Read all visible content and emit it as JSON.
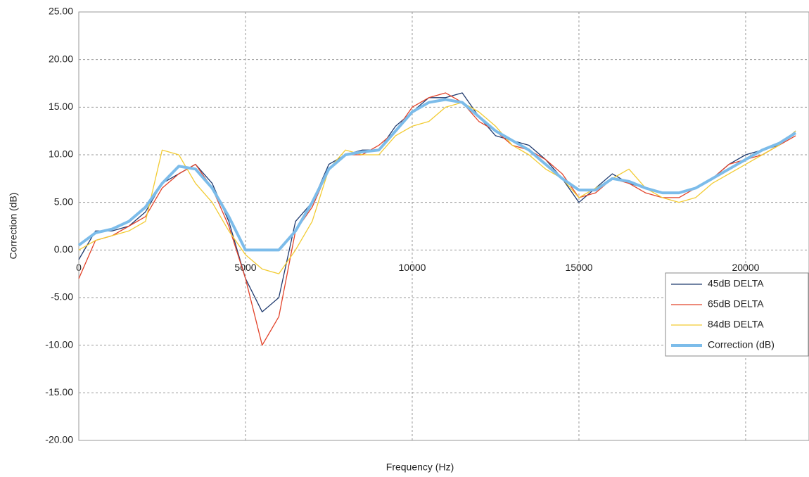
{
  "chart_data": {
    "type": "line",
    "x_label": "Frequency (Hz)",
    "y_label": "Correction (dB)",
    "x": [
      0,
      500,
      1000,
      1500,
      2000,
      2500,
      3000,
      3500,
      4000,
      4500,
      5000,
      5500,
      6000,
      6500,
      7000,
      7500,
      8000,
      8500,
      9000,
      9500,
      10000,
      10500,
      11000,
      11500,
      12000,
      12500,
      13000,
      13500,
      14000,
      14500,
      15000,
      15500,
      16000,
      16500,
      17000,
      17500,
      18000,
      18500,
      19000,
      19500,
      20000,
      20500,
      21000,
      21500
    ],
    "series": [
      {
        "name": "45dB DELTA",
        "color": "#1f3a6e",
        "width": 1.3,
        "values": [
          -1,
          2,
          2,
          2.5,
          4,
          7,
          8,
          9,
          7,
          3,
          -3,
          -6.5,
          -5,
          3,
          5,
          9,
          10,
          10.5,
          10.5,
          13,
          14.5,
          16,
          16,
          16.5,
          14,
          12,
          11.5,
          11,
          9.5,
          7.5,
          5,
          6.5,
          8,
          7,
          6.5,
          6,
          6,
          6.5,
          7.5,
          9,
          10,
          10.5,
          11,
          12.5
        ]
      },
      {
        "name": "65dB DELTA",
        "color": "#e2432a",
        "width": 1.3,
        "values": [
          -3,
          1,
          1.5,
          2.5,
          3.5,
          6.5,
          8,
          9,
          6.5,
          2.5,
          -3,
          -10,
          -7,
          2,
          4.5,
          8.5,
          10,
          10,
          11,
          12.5,
          15,
          16,
          16.5,
          15.5,
          13.5,
          12.5,
          11,
          10.5,
          9.5,
          8,
          5.5,
          6,
          7.5,
          7,
          6,
          5.5,
          5.5,
          6.5,
          7.5,
          9,
          9.5,
          10,
          11,
          12
        ]
      },
      {
        "name": "84dB DELTA",
        "color": "#f2cb32",
        "width": 1.3,
        "values": [
          0,
          1,
          1.5,
          2,
          3,
          10.5,
          10,
          7,
          5,
          2,
          -0.5,
          -2,
          -2.5,
          0,
          3,
          8.5,
          10.5,
          10,
          10,
          12,
          13,
          13.5,
          15,
          15.5,
          14.5,
          13,
          11,
          10,
          8.5,
          7.5,
          5.5,
          6.5,
          7.5,
          8.5,
          6.5,
          5.5,
          5,
          5.5,
          7,
          8,
          9,
          10,
          11,
          12.5
        ]
      },
      {
        "name": "Correction (dB)",
        "color": "#7cbcea",
        "width": 4,
        "values": [
          0.5,
          1.8,
          2.2,
          3,
          4.5,
          7,
          8.8,
          8.5,
          6.5,
          3.5,
          0,
          0,
          0,
          2,
          5,
          8.5,
          10,
          10.3,
          10.5,
          12.5,
          14.5,
          15.5,
          15.8,
          15.5,
          14,
          12.5,
          11.5,
          10.5,
          9,
          7.5,
          6.3,
          6.3,
          7.5,
          7.2,
          6.5,
          6,
          6,
          6.5,
          7.5,
          8.5,
          9.5,
          10.5,
          11.2,
          12.3
        ]
      }
    ],
    "xlim": [
      0,
      21900
    ],
    "xticks": [
      0,
      5000,
      10000,
      15000,
      20000
    ],
    "ylim": [
      -20,
      25
    ],
    "yticks": [
      {
        "value": -20,
        "label": "-20.00"
      },
      {
        "value": -15,
        "label": "-15.00"
      },
      {
        "value": -10,
        "label": "-10.00"
      },
      {
        "value": -5,
        "label": "-5.00"
      },
      {
        "value": 0,
        "label": "0.00"
      },
      {
        "value": 5,
        "label": "5.00"
      },
      {
        "value": 10,
        "label": "10.00"
      },
      {
        "value": 15,
        "label": "15.00"
      },
      {
        "value": 20,
        "label": "20.00"
      },
      {
        "value": 25,
        "label": "25.00"
      }
    ],
    "grid": true,
    "legend": "right"
  }
}
